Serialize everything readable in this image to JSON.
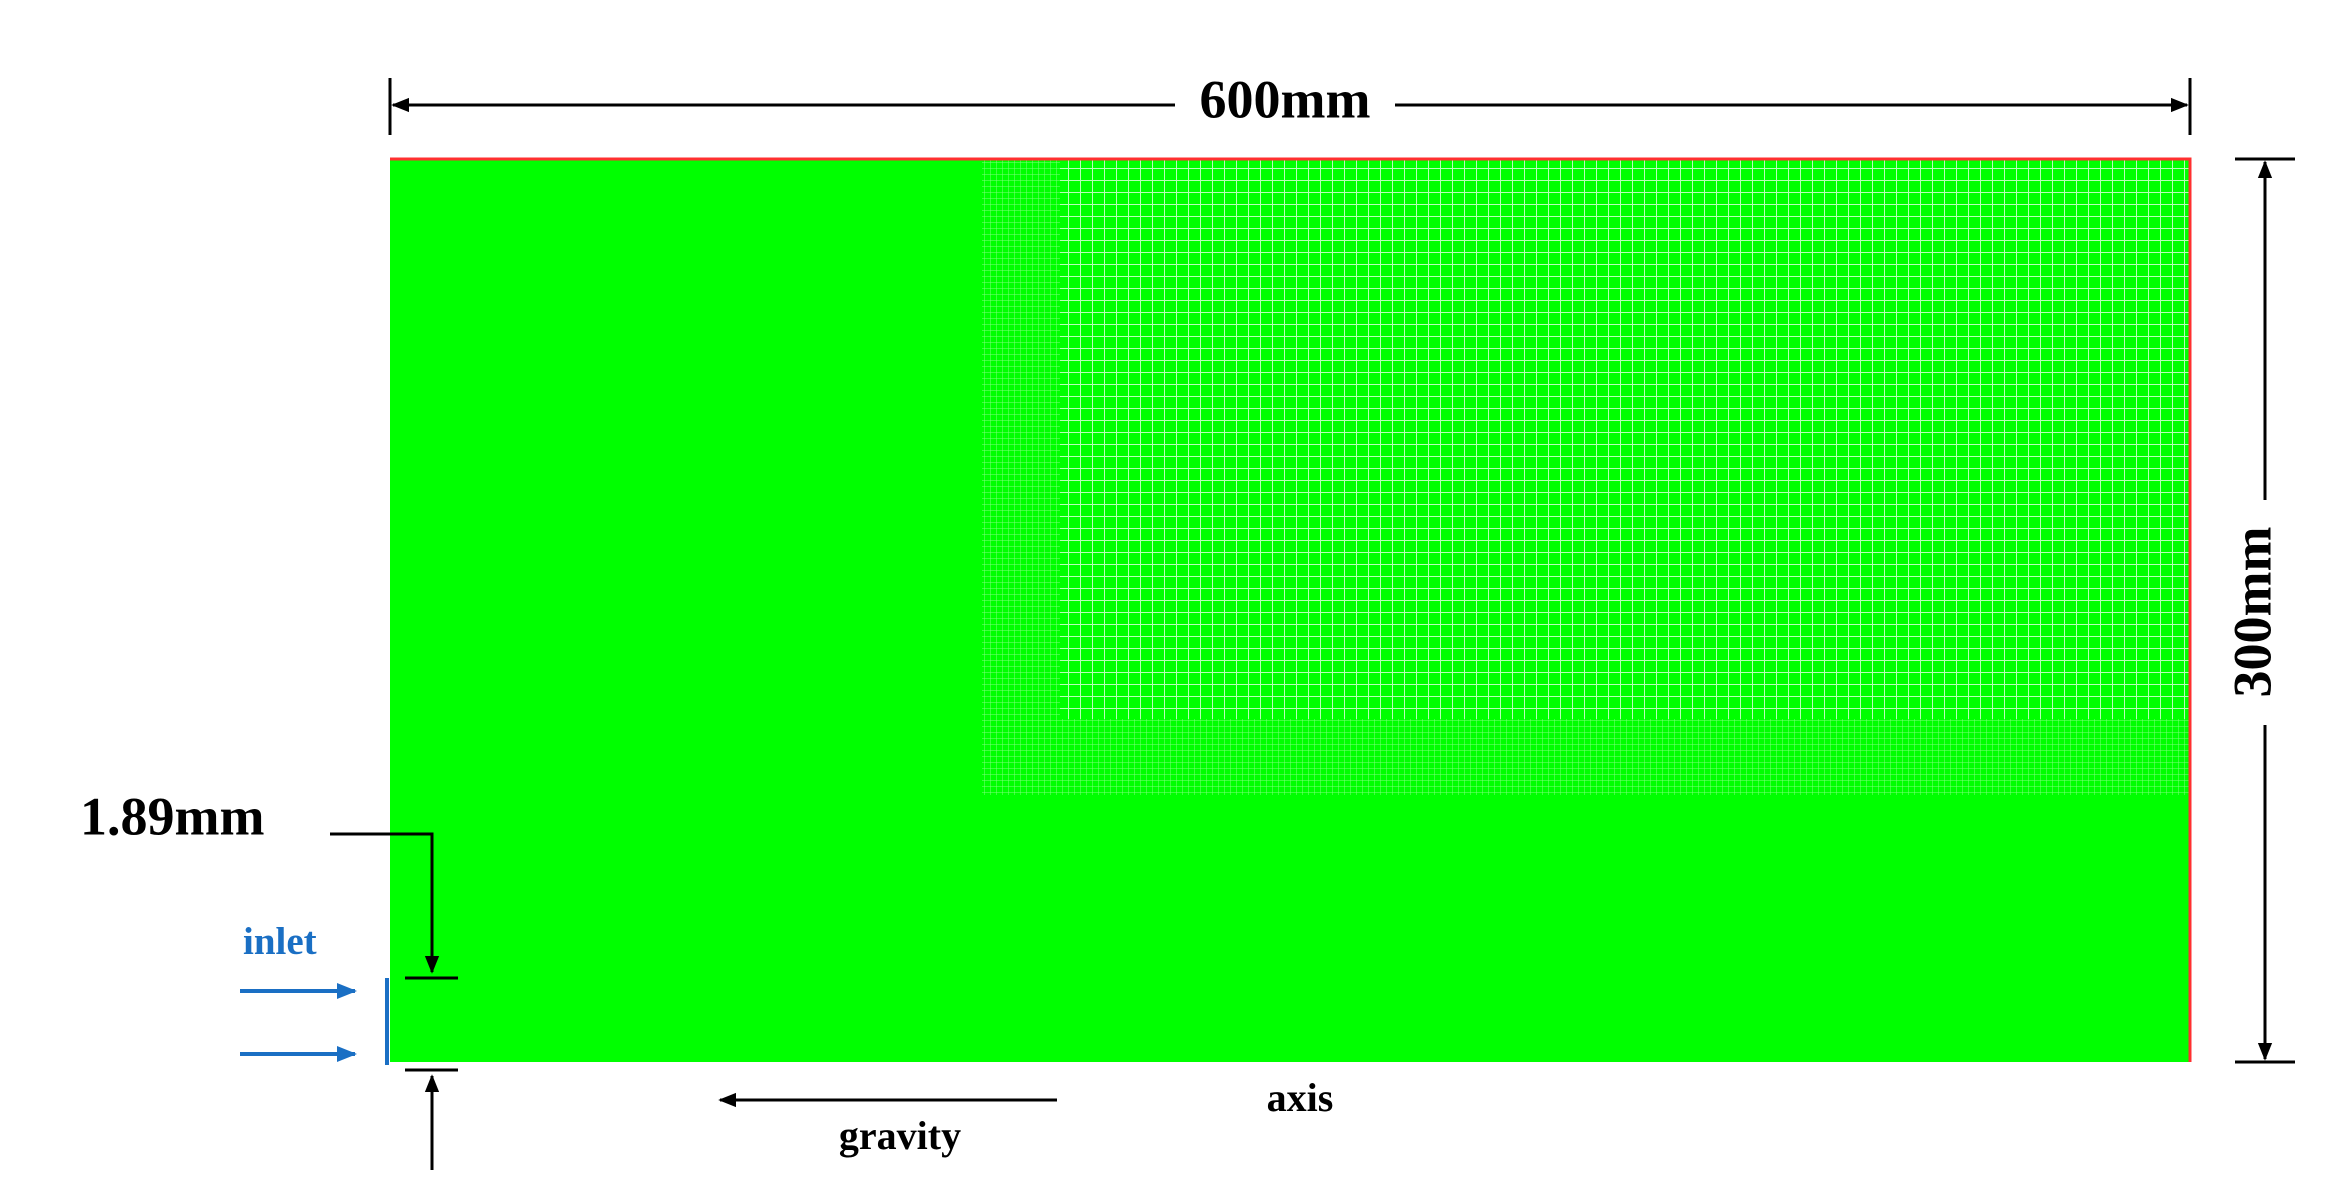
{
  "dimensions": {
    "width": "600mm",
    "height": "300mm",
    "inlet_gap": "1.89mm"
  },
  "labels": {
    "inlet": "inlet",
    "gravity": "gravity",
    "axis": "axis"
  }
}
